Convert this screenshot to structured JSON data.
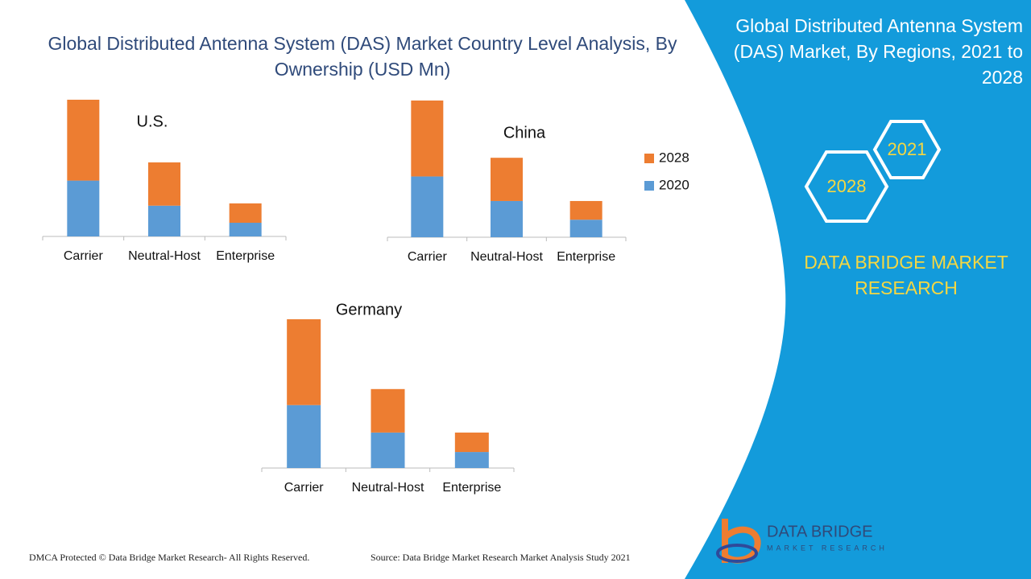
{
  "header": {
    "title": "Global Distributed Antenna System (DAS) Market Country Level Analysis, By Ownership (USD Mn)"
  },
  "chart_data": [
    {
      "type": "bar",
      "stacked": true,
      "title": "U.S.",
      "categories": [
        "Carrier",
        "Neutral-Host",
        "Enterprise"
      ],
      "series": [
        {
          "name": "2028",
          "color": "#ed7d31",
          "values": [
            71,
            38,
            17
          ]
        },
        {
          "name": "2020",
          "color": "#5b9bd5",
          "values": [
            49,
            27,
            12
          ]
        }
      ]
    },
    {
      "type": "bar",
      "stacked": true,
      "title": "China",
      "categories": [
        "Carrier",
        "Neutral-Host",
        "Enterprise"
      ],
      "legend": "right",
      "series": [
        {
          "name": "2028",
          "color": "#ed7d31",
          "values": [
            65,
            37,
            16
          ]
        },
        {
          "name": "2020",
          "color": "#5b9bd5",
          "values": [
            52,
            31,
            15
          ]
        }
      ]
    },
    {
      "type": "bar",
      "stacked": true,
      "title": "Germany",
      "categories": [
        "Carrier",
        "Neutral-Host",
        "Enterprise"
      ],
      "series": [
        {
          "name": "2028",
          "color": "#ed7d31",
          "values": [
            75,
            38,
            17
          ]
        },
        {
          "name": "2020",
          "color": "#5b9bd5",
          "values": [
            55,
            31,
            14
          ]
        }
      ]
    }
  ],
  "side_panel": {
    "title": "Global Distributed Antenna System (DAS) Market, By Regions, 2021 to 2028",
    "hex_1": "2021",
    "hex_2": "2028",
    "brand": "DATA BRIDGE MARKET RESEARCH",
    "logo_name": "DATA BRIDGE",
    "logo_sub": "MARKET RESEARCH"
  },
  "footer": {
    "left": "DMCA Protected © Data Bridge Market Research- All Rights Reserved.",
    "right": "Source: Data Bridge Market Research Market Analysis Study 2021"
  }
}
